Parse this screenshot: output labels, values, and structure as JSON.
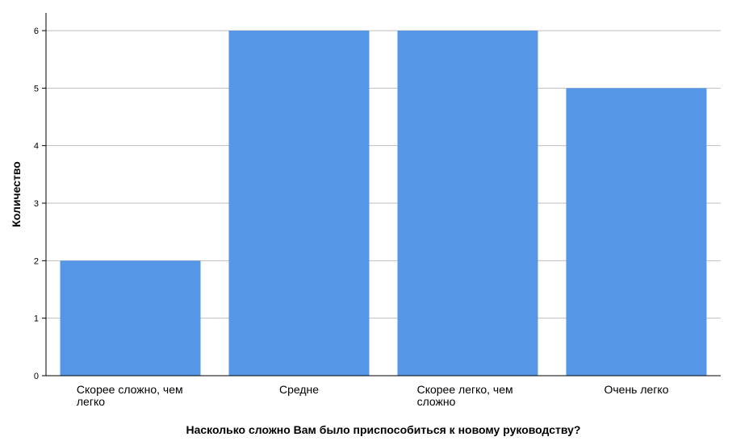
{
  "chart_data": {
    "type": "bar",
    "categories": [
      [
        "Скорее сложно, чем",
        "легко"
      ],
      [
        "Средне"
      ],
      [
        "Скорее легко, чем",
        "сложно"
      ],
      [
        "Очень легко"
      ]
    ],
    "values": [
      2,
      6,
      6,
      5
    ],
    "xlabel": "Насколько сложно Вам было приспособиться к новому руководству?",
    "ylabel": "Количество",
    "ylim": [
      0,
      6
    ],
    "yticks": [
      0,
      1,
      2,
      3,
      4,
      5,
      6
    ],
    "grid": true,
    "bar_color": "#5596E6",
    "grid_color": "#BFBFBF"
  }
}
